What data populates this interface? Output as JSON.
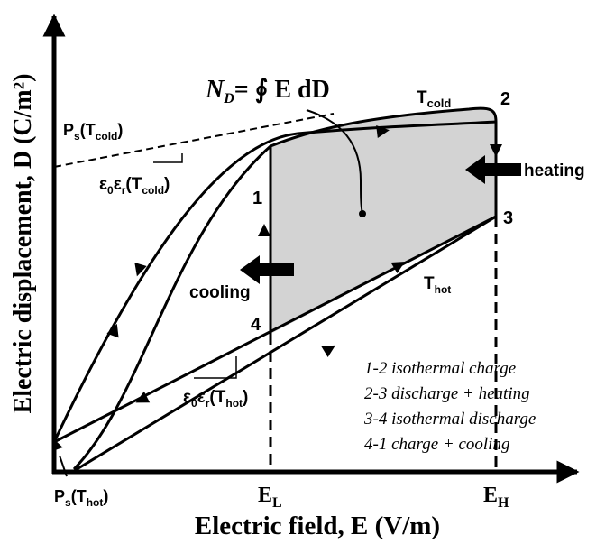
{
  "axes": {
    "x_label": "Electric field, E (V/m)",
    "y_label": "Electric displacement, D (C/m²)"
  },
  "formula": {
    "lhs": "N",
    "lhs_sub": "D",
    "rhs": "= ∮ E dD"
  },
  "curve_labels": {
    "t_cold": "T",
    "t_cold_sub": "cold",
    "t_hot": "T",
    "t_hot_sub": "hot",
    "ps_cold": "P",
    "ps_cold_sub": "s",
    "ps_cold_arg": "(T",
    "ps_cold_arg_sub": "cold",
    "ps_hot": "P",
    "ps_hot_sub": "s",
    "ps_hot_arg": "(T",
    "ps_hot_arg_sub": "hot",
    "close_paren": ")",
    "eps_cold": "ε",
    "eps_cold_sub0": "0",
    "eps_cold_mid": "ε",
    "eps_cold_subr": "r",
    "eps_cold_arg": "(T",
    "eps_cold_arg_sub": "cold",
    "eps_hot": "ε",
    "eps_hot_sub0": "0",
    "eps_hot_mid": "ε",
    "eps_hot_subr": "r",
    "eps_hot_arg": "(T",
    "eps_hot_arg_sub": "hot"
  },
  "points": {
    "p1": "1",
    "p2": "2",
    "p3": "3",
    "p4": "4"
  },
  "process_labels": {
    "heating": "heating",
    "cooling": "cooling"
  },
  "ticks": {
    "el": "E",
    "el_sub": "L",
    "eh": "E",
    "eh_sub": "H"
  },
  "legend": [
    "1-2 isothermal charge",
    "2-3 discharge + heating",
    "3-4 isothermal discharge",
    "4-1 charge + cooling"
  ],
  "colors": {
    "cycle_fill": "#d3d3d3",
    "line": "#000000"
  }
}
